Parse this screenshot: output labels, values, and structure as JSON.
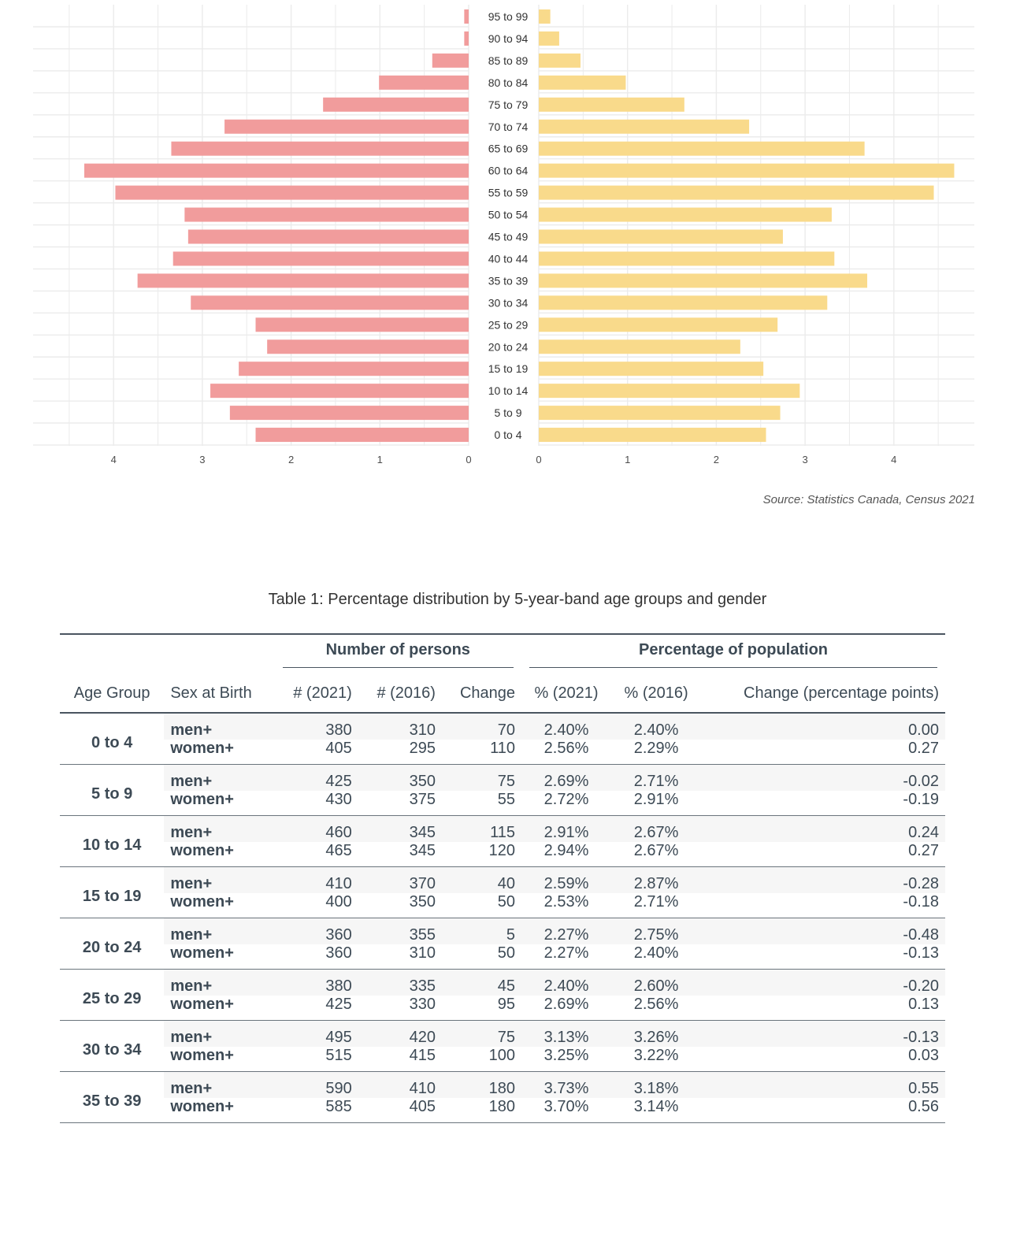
{
  "chart_data": {
    "type": "bar",
    "orientation": "horizontal-pyramid",
    "categories": [
      "0 to 4",
      "5 to 9",
      "10 to 14",
      "15 to 19",
      "20 to 24",
      "25 to 29",
      "30 to 34",
      "35 to 39",
      "40 to 44",
      "45 to 49",
      "50 to 54",
      "55 to 59",
      "60 to 64",
      "65 to 69",
      "70 to 74",
      "75 to 79",
      "80 to 84",
      "85 to 89",
      "90 to 94",
      "95 to 99"
    ],
    "series": [
      {
        "values": [
          2.4,
          2.69,
          2.91,
          2.59,
          2.27,
          2.4,
          3.13,
          3.73,
          3.33,
          3.16,
          3.2,
          3.98,
          4.33,
          3.35,
          2.75,
          1.64,
          1.01,
          0.41,
          0.05,
          0.05
        ],
        "color": "#f19c9c",
        "side": "left"
      },
      {
        "values": [
          2.56,
          2.72,
          2.94,
          2.53,
          2.27,
          2.69,
          3.25,
          3.7,
          3.33,
          2.75,
          3.3,
          4.45,
          4.68,
          3.67,
          2.37,
          1.64,
          0.98,
          0.47,
          0.23,
          0.13
        ],
        "color": "#f9da8b",
        "side": "right"
      }
    ],
    "left_ticks": [
      "4",
      "3",
      "2",
      "1",
      "0"
    ],
    "right_ticks": [
      "0",
      "1",
      "2",
      "3",
      "4"
    ],
    "xlim": [
      0,
      4.7
    ],
    "grid": true,
    "source": "Source: Statistics Canada, Census 2021"
  },
  "table": {
    "title": "Table 1: Percentage distribution by 5-year-band age groups and gender",
    "spanners": [
      "Number of persons",
      "Percentage of population"
    ],
    "columns": [
      "Age Group",
      "Sex at Birth",
      "# (2021)",
      "# (2016)",
      "Change",
      "% (2021)",
      "% (2016)",
      "Change (percentage points)"
    ],
    "groups": [
      {
        "age": "0 to 4",
        "rows": [
          [
            "men+",
            "380",
            "310",
            "70",
            "2.40%",
            "2.40%",
            "0.00"
          ],
          [
            "women+",
            "405",
            "295",
            "110",
            "2.56%",
            "2.29%",
            "0.27"
          ]
        ]
      },
      {
        "age": "5 to 9",
        "rows": [
          [
            "men+",
            "425",
            "350",
            "75",
            "2.69%",
            "2.71%",
            "-0.02"
          ],
          [
            "women+",
            "430",
            "375",
            "55",
            "2.72%",
            "2.91%",
            "-0.19"
          ]
        ]
      },
      {
        "age": "10 to 14",
        "rows": [
          [
            "men+",
            "460",
            "345",
            "115",
            "2.91%",
            "2.67%",
            "0.24"
          ],
          [
            "women+",
            "465",
            "345",
            "120",
            "2.94%",
            "2.67%",
            "0.27"
          ]
        ]
      },
      {
        "age": "15 to 19",
        "rows": [
          [
            "men+",
            "410",
            "370",
            "40",
            "2.59%",
            "2.87%",
            "-0.28"
          ],
          [
            "women+",
            "400",
            "350",
            "50",
            "2.53%",
            "2.71%",
            "-0.18"
          ]
        ]
      },
      {
        "age": "20 to 24",
        "rows": [
          [
            "men+",
            "360",
            "355",
            "5",
            "2.27%",
            "2.75%",
            "-0.48"
          ],
          [
            "women+",
            "360",
            "310",
            "50",
            "2.27%",
            "2.40%",
            "-0.13"
          ]
        ]
      },
      {
        "age": "25 to 29",
        "rows": [
          [
            "men+",
            "380",
            "335",
            "45",
            "2.40%",
            "2.60%",
            "-0.20"
          ],
          [
            "women+",
            "425",
            "330",
            "95",
            "2.69%",
            "2.56%",
            "0.13"
          ]
        ]
      },
      {
        "age": "30 to 34",
        "rows": [
          [
            "men+",
            "495",
            "420",
            "75",
            "3.13%",
            "3.26%",
            "-0.13"
          ],
          [
            "women+",
            "515",
            "415",
            "100",
            "3.25%",
            "3.22%",
            "0.03"
          ]
        ]
      },
      {
        "age": "35 to 39",
        "rows": [
          [
            "men+",
            "590",
            "410",
            "180",
            "3.73%",
            "3.18%",
            "0.55"
          ],
          [
            "women+",
            "585",
            "405",
            "180",
            "3.70%",
            "3.14%",
            "0.56"
          ]
        ]
      }
    ]
  }
}
